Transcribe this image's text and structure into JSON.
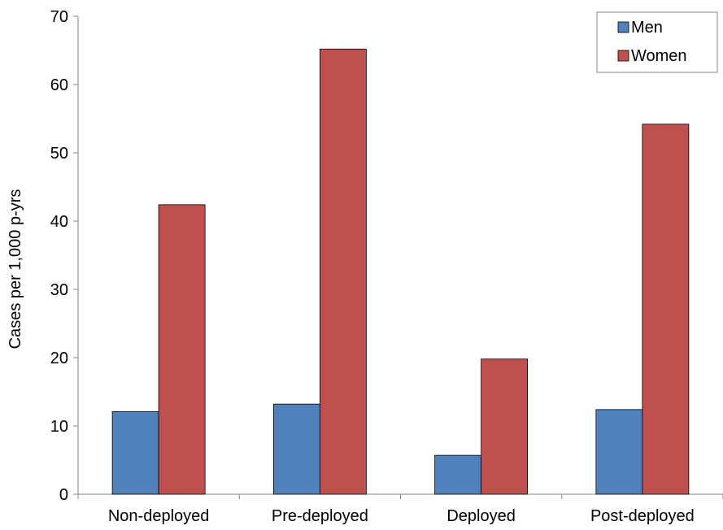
{
  "chart_data": {
    "type": "bar",
    "title": "",
    "xlabel": "",
    "ylabel": "Cases per 1,000 p-yrs",
    "ylim": [
      0,
      70
    ],
    "yticks": [
      0,
      10,
      20,
      30,
      40,
      50,
      60,
      70
    ],
    "grid": false,
    "legend_position": "top-right",
    "categories": [
      "Non-deployed",
      "Pre-deployed",
      "Deployed",
      "Post-deployed"
    ],
    "series": [
      {
        "name": "Men",
        "color": "#4F81BD",
        "values": [
          12.1,
          13.2,
          5.7,
          12.4
        ]
      },
      {
        "name": "Women",
        "color": "#C0504D",
        "values": [
          42.4,
          65.2,
          19.8,
          54.2
        ]
      }
    ]
  }
}
